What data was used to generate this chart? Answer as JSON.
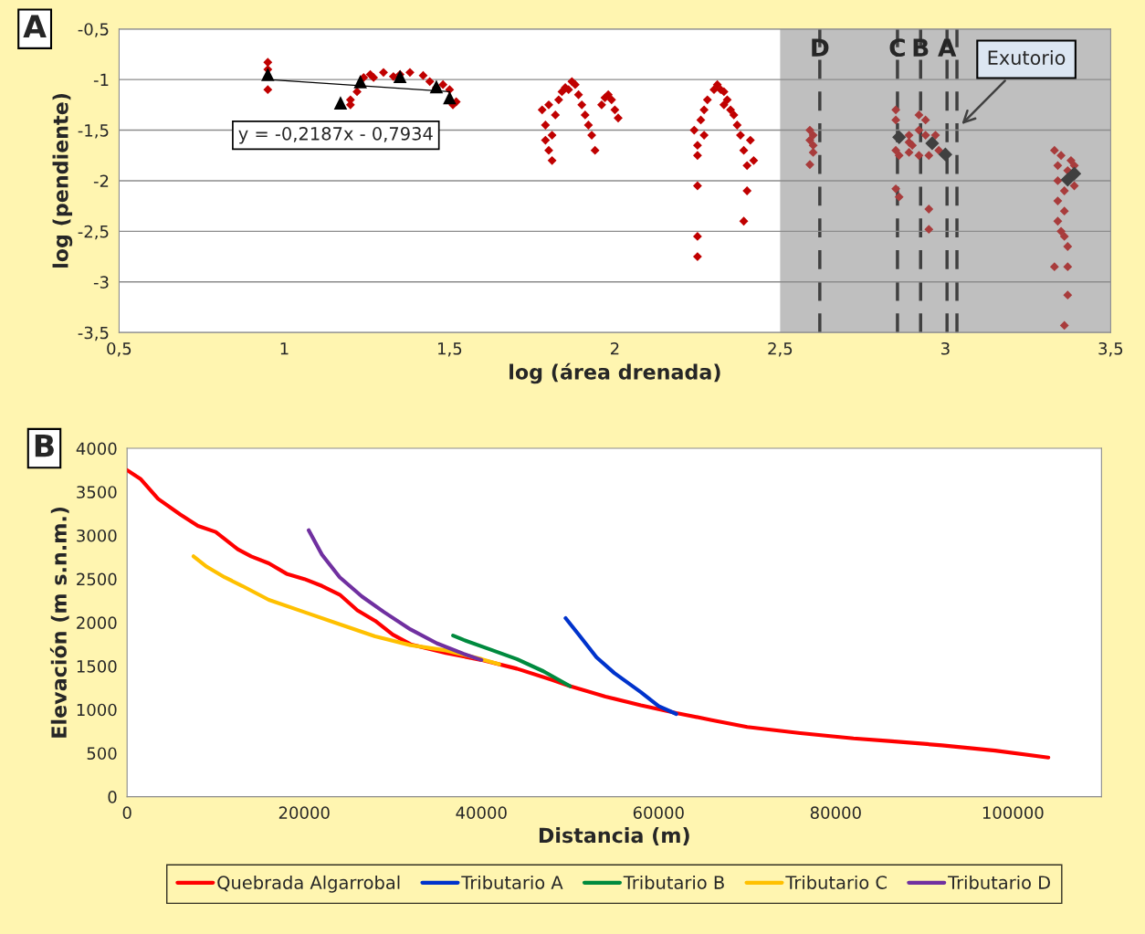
{
  "chart_data": [
    {
      "type": "scatter",
      "xlabel": "log (área drenada)",
      "ylabel": "log (pendiente)",
      "xlim": [
        0.5,
        3.5
      ],
      "ylim": [
        -3.5,
        -0.5
      ],
      "xticks": [
        {
          "value": 0.5,
          "label": "0,5"
        },
        1,
        {
          "value": 1.5,
          "label": "1,5"
        },
        2,
        {
          "value": 2.5,
          "label": "2,5"
        },
        3,
        {
          "value": 3.5,
          "label": "3,5"
        }
      ],
      "yticks": [
        {
          "value": -3.5,
          "label": "-3,5"
        },
        -3,
        {
          "value": -2.5,
          "label": "-2,5"
        },
        -2,
        {
          "value": -1.5,
          "label": "-1,5"
        },
        -1,
        {
          "value": -0.5,
          "label": "-0,5"
        }
      ],
      "grid": "y",
      "series": [
        {
          "type": "scatter",
          "marker": "diamond",
          "color": "#c00000",
          "x": [
            0.95,
            0.95,
            0.95,
            1.2,
            1.2,
            1.22,
            1.24,
            1.26,
            1.3,
            1.35,
            1.38,
            1.42,
            1.44,
            1.46,
            1.48,
            1.5,
            1.51,
            1.52,
            1.27,
            1.33,
            1.78,
            1.79,
            1.79,
            1.8,
            1.81,
            1.82,
            1.83,
            1.84,
            1.85,
            1.87,
            1.88,
            1.89,
            1.9,
            1.91,
            1.92,
            1.93,
            1.94,
            1.96,
            1.97,
            1.98,
            1.99,
            2.0,
            2.01,
            1.81,
            1.8,
            1.86,
            2.24,
            2.25,
            2.25,
            2.25,
            2.25,
            2.25,
            2.26,
            2.27,
            2.28,
            2.3,
            2.31,
            2.32,
            2.33,
            2.34,
            2.35,
            2.36,
            2.37,
            2.38,
            2.39,
            2.4,
            2.39,
            2.4,
            2.41,
            2.42,
            2.27,
            2.33
          ],
          "values": [
            -0.83,
            -0.9,
            -1.1,
            -1.2,
            -1.25,
            -1.12,
            -0.98,
            -0.95,
            -0.93,
            -0.95,
            -0.93,
            -0.96,
            -1.02,
            -1.08,
            -1.05,
            -1.1,
            -1.25,
            -1.22,
            -0.98,
            -0.97,
            -1.3,
            -1.45,
            -1.6,
            -1.7,
            -1.8,
            -1.35,
            -1.2,
            -1.12,
            -1.08,
            -1.02,
            -1.05,
            -1.15,
            -1.25,
            -1.35,
            -1.45,
            -1.55,
            -1.7,
            -1.25,
            -1.18,
            -1.15,
            -1.2,
            -1.3,
            -1.38,
            -1.55,
            -1.25,
            -1.1,
            -1.5,
            -1.65,
            -1.75,
            -2.05,
            -2.55,
            -2.75,
            -1.4,
            -1.3,
            -1.2,
            -1.1,
            -1.05,
            -1.1,
            -1.12,
            -1.2,
            -1.3,
            -1.35,
            -1.45,
            -1.55,
            -1.7,
            -1.85,
            -2.4,
            -2.1,
            -1.6,
            -1.8,
            -1.55,
            -1.25
          ]
        },
        {
          "type": "scatter",
          "marker": "diamond",
          "color": "#a83c3c",
          "x": [
            2.59,
            2.59,
            2.6,
            2.6,
            2.6,
            2.59,
            2.85,
            2.85,
            2.85,
            2.86,
            2.85,
            2.86,
            2.89,
            2.89,
            2.89,
            2.9,
            2.92,
            2.92,
            2.92,
            2.94,
            2.94,
            2.95,
            2.95,
            2.95,
            2.97,
            2.98,
            3.33,
            3.34,
            3.34,
            3.34,
            3.34,
            3.33,
            3.35,
            3.36,
            3.36,
            3.36,
            3.37,
            3.37,
            3.37,
            3.36,
            3.38,
            3.39,
            3.39,
            3.35,
            3.37
          ],
          "values": [
            -1.5,
            -1.6,
            -1.55,
            -1.65,
            -1.72,
            -1.84,
            -1.3,
            -1.4,
            -1.7,
            -1.75,
            -2.08,
            -2.16,
            -1.55,
            -1.62,
            -1.72,
            -1.65,
            -1.35,
            -1.5,
            -1.75,
            -1.4,
            -1.55,
            -1.75,
            -2.28,
            -2.48,
            -1.55,
            -1.7,
            -1.7,
            -1.85,
            -2.0,
            -2.2,
            -2.4,
            -2.85,
            -1.75,
            -2.1,
            -2.3,
            -2.55,
            -2.65,
            -2.85,
            -3.13,
            -3.43,
            -1.8,
            -1.85,
            -2.05,
            -2.5,
            -1.9
          ]
        },
        {
          "type": "line",
          "marker": "none",
          "color": "#000000",
          "x": [
            0.95,
            1.5
          ],
          "values": [
            -1.0,
            -1.12
          ]
        },
        {
          "type": "scatter",
          "marker": "triangle",
          "color": "#000000",
          "x": [
            0.95,
            1.17,
            1.23,
            1.35,
            1.46,
            1.5
          ],
          "values": [
            -0.95,
            -1.23,
            -1.02,
            -0.97,
            -1.07,
            -1.18
          ]
        },
        {
          "type": "scatter",
          "marker": "diamond",
          "color": "#404040",
          "x": [
            2.86,
            2.96,
            3.0,
            3.37,
            3.39
          ],
          "values": [
            -1.57,
            -1.63,
            -1.74,
            -1.99,
            -1.93
          ]
        }
      ],
      "bands": [
        {
          "axis": "x",
          "from": 2.5,
          "to": 3.5,
          "color": "#bfbfbf"
        }
      ],
      "ref_lines": [
        {
          "axis": "x",
          "value": 2.62,
          "label": "D",
          "color": "#404040",
          "line_style": "dashed"
        },
        {
          "axis": "x",
          "value": 2.855,
          "label": "C",
          "color": "#404040",
          "line_style": "dashed"
        },
        {
          "axis": "x",
          "value": 2.925,
          "label": "B",
          "color": "#404040",
          "line_style": "dashed"
        },
        {
          "axis": "x",
          "value": 3.005,
          "label": "A",
          "color": "#404040",
          "line_style": "dashed"
        },
        {
          "axis": "x",
          "value": 3.035,
          "label": null,
          "color": "#404040",
          "line_style": "dashed"
        }
      ],
      "annotations": [
        "A",
        "y = -0,2187x - 0,7934",
        "Exutorio"
      ]
    },
    {
      "type": "line",
      "xlabel": "Distancia (m)",
      "ylabel": "Elevación (m s.n.m.)",
      "xlim": [
        0,
        110000
      ],
      "ylim": [
        0,
        4000
      ],
      "xticks": [
        0,
        20000,
        40000,
        60000,
        80000,
        100000
      ],
      "yticks": [
        0,
        500,
        1000,
        1500,
        2000,
        2500,
        3000,
        3500,
        4000
      ],
      "grid": false,
      "legend": "bottom",
      "marker": "none",
      "line_style": "solid",
      "series": [
        {
          "name": "Quebrada Algarrobal",
          "color": "#ff0000",
          "x": [
            0,
            1500,
            3500,
            6000,
            8000,
            10000,
            12500,
            14000,
            16000,
            18000,
            20000,
            22000,
            24000,
            26000,
            28000,
            30000,
            32000,
            36000,
            40000,
            44000,
            48000,
            50000,
            54000,
            58000,
            62000,
            66000,
            70000,
            76000,
            82000,
            86000,
            92000,
            98000,
            104000
          ],
          "values": [
            3750,
            3650,
            3420,
            3240,
            3110,
            3040,
            2840,
            2760,
            2680,
            2560,
            2500,
            2420,
            2320,
            2140,
            2020,
            1860,
            1750,
            1650,
            1570,
            1470,
            1340,
            1270,
            1150,
            1050,
            960,
            880,
            800,
            730,
            670,
            640,
            590,
            530,
            450
          ]
        },
        {
          "name": "Tributario A",
          "color": "#0033cc",
          "x": [
            49500,
            51000,
            53000,
            55000,
            58000,
            60000,
            62000
          ],
          "values": [
            2050,
            1860,
            1600,
            1420,
            1200,
            1040,
            950
          ]
        },
        {
          "name": "Tributario B",
          "color": "#008a3e",
          "x": [
            36800,
            38000,
            41000,
            44000,
            47000,
            50000
          ],
          "values": [
            1850,
            1800,
            1690,
            1580,
            1440,
            1270
          ]
        },
        {
          "name": "Tributario C",
          "color": "#ffc000",
          "x": [
            7500,
            9000,
            11000,
            13000,
            16000,
            20000,
            24000,
            28000,
            32000,
            36000,
            40000,
            42000
          ],
          "values": [
            2760,
            2640,
            2520,
            2420,
            2260,
            2120,
            1980,
            1840,
            1740,
            1680,
            1580,
            1520
          ]
        },
        {
          "name": "Tributario D",
          "color": "#7030a0",
          "x": [
            20500,
            22000,
            24000,
            26500,
            29000,
            32000,
            35000,
            38000,
            40000
          ],
          "values": [
            3060,
            2780,
            2520,
            2300,
            2120,
            1920,
            1760,
            1640,
            1570
          ]
        }
      ],
      "annotations": [
        "B"
      ]
    }
  ]
}
